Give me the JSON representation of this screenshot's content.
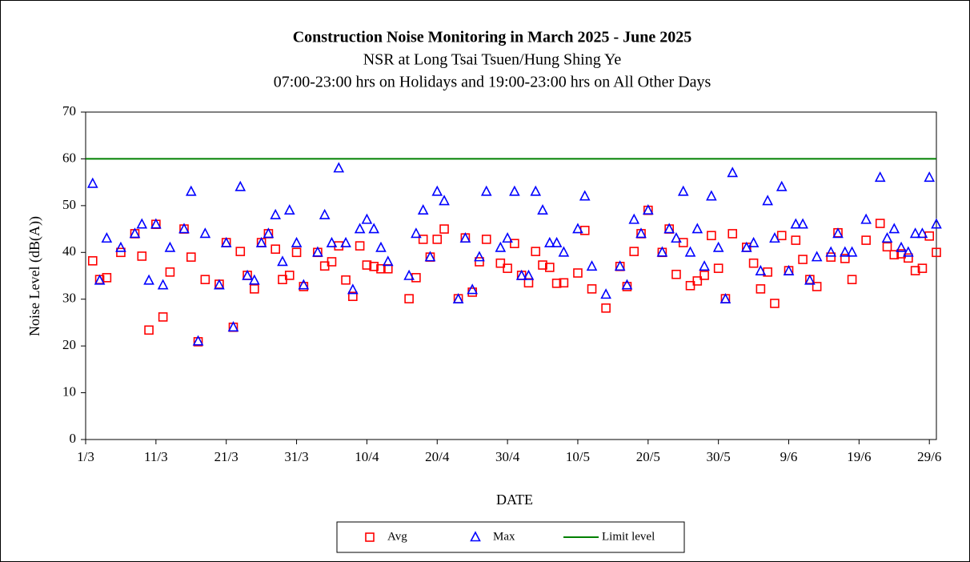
{
  "chart_data": {
    "type": "scatter",
    "title": "Construction Noise Monitoring in March 2025 - June 2025",
    "subtitle": [
      "NSR at Long Tsai Tsuen/Hung Shing Ye",
      "07:00-23:00  hrs on Holidays and 19:00-23:00  hrs on All Other Days"
    ],
    "x_label": "DATE",
    "y_label": "Noise Level (dB(A))",
    "x": [
      "2/3",
      "3/3",
      "4/3",
      "6/3",
      "8/3",
      "9/3",
      "10/3",
      "11/3",
      "12/3",
      "13/3",
      "15/3",
      "16/3",
      "17/3",
      "18/3",
      "20/3",
      "21/3",
      "22/3",
      "23/3",
      "24/3",
      "25/3",
      "26/3",
      "27/3",
      "28/3",
      "29/3",
      "30/3",
      "31/3",
      "1/4",
      "3/4",
      "4/4",
      "5/4",
      "6/4",
      "7/4",
      "8/4",
      "9/4",
      "10/4",
      "11/4",
      "12/4",
      "13/4",
      "16/4",
      "17/4",
      "18/4",
      "19/4",
      "20/4",
      "21/4",
      "23/4",
      "24/4",
      "25/4",
      "26/4",
      "27/4",
      "29/4",
      "30/4",
      "1/5",
      "2/5",
      "3/5",
      "4/5",
      "5/5",
      "6/5",
      "7/5",
      "8/5",
      "10/5",
      "11/5",
      "12/5",
      "14/5",
      "16/5",
      "17/5",
      "18/5",
      "19/5",
      "20/5",
      "22/5",
      "23/5",
      "24/5",
      "25/5",
      "26/5",
      "27/5",
      "28/5",
      "29/5",
      "30/5",
      "31/5",
      "1/6",
      "3/6",
      "4/6",
      "5/6",
      "6/6",
      "7/6",
      "8/6",
      "9/6",
      "10/6",
      "11/6",
      "12/6",
      "13/6",
      "15/6",
      "16/6",
      "17/6",
      "18/6",
      "20/6",
      "22/6",
      "23/6",
      "24/6",
      "25/6",
      "26/6",
      "27/6",
      "28/6",
      "29/6",
      "30/6"
    ],
    "series": [
      {
        "name": "Avg",
        "color": "#ff0000",
        "marker": "square",
        "values": [
          38.2,
          34.2,
          34.6,
          40,
          44,
          39.2,
          23.4,
          46,
          26.2,
          35.8,
          45,
          39,
          20.9,
          34.2,
          33.2,
          42.1,
          24,
          40.2,
          35.1,
          32.2,
          42.1,
          44,
          40.7,
          34.2,
          35.1,
          40,
          32.7,
          40,
          37.1,
          38,
          41.4,
          34.1,
          30.6,
          41.4,
          37.3,
          37,
          36.5,
          36.5,
          30.1,
          34.6,
          42.8,
          39,
          42.8,
          45,
          30.1,
          43.1,
          31.5,
          38,
          42.8,
          37.7,
          36.6,
          41.9,
          35.1,
          33.5,
          40.2,
          37.3,
          36.8,
          33.4,
          33.5,
          35.6,
          44.7,
          32.2,
          28.1,
          37,
          32.7,
          40.2,
          44,
          49,
          40,
          45,
          35.3,
          42.1,
          32.9,
          33.9,
          35.1,
          43.6,
          36.6,
          30.1,
          44,
          41.1,
          37.7,
          32.2,
          35.8,
          29.1,
          43.6,
          36.1,
          42.6,
          38.5,
          34.2,
          32.7,
          39,
          44.2,
          38.7,
          34.2,
          42.6,
          46.2,
          41.2,
          39.5,
          39.7,
          38.8,
          36.1,
          36.6,
          43.5,
          40
        ]
      },
      {
        "name": "Max",
        "color": "#0000ff",
        "marker": "triangle",
        "values": [
          54.7,
          34,
          43,
          41,
          44,
          46,
          34,
          46,
          33,
          41,
          45,
          53,
          21,
          44,
          33,
          42,
          24,
          54,
          35,
          34,
          42,
          44,
          48,
          38,
          49,
          42,
          33,
          40,
          48,
          42,
          58,
          42,
          32,
          45,
          47,
          45,
          41,
          38,
          35,
          44,
          49,
          39,
          53,
          51,
          30,
          43,
          32,
          39,
          53,
          41,
          43,
          53,
          35,
          35,
          53,
          49,
          42,
          42,
          40,
          45,
          52,
          37,
          31,
          37,
          33,
          47,
          44,
          49,
          40,
          45,
          43,
          53,
          40,
          45,
          37,
          52,
          41,
          30,
          57,
          41,
          42,
          36,
          51,
          43,
          54,
          36,
          46,
          46,
          34,
          39,
          40,
          44,
          40,
          40,
          47,
          56,
          43,
          45,
          41,
          40,
          44,
          44,
          56,
          46
        ]
      }
    ],
    "limit": {
      "name": "Limit level",
      "value": 60,
      "color": "#008000"
    },
    "xlim": [
      "1/3",
      "30/6"
    ],
    "xticks": [
      "1/3",
      "11/3",
      "21/3",
      "31/3",
      "10/4",
      "20/4",
      "30/4",
      "10/5",
      "20/5",
      "30/5",
      "9/6",
      "19/6",
      "29/6"
    ],
    "ylim": [
      0,
      70
    ],
    "yticks": [
      0,
      10,
      20,
      30,
      40,
      50,
      60,
      70
    ],
    "legend": "bottom"
  }
}
